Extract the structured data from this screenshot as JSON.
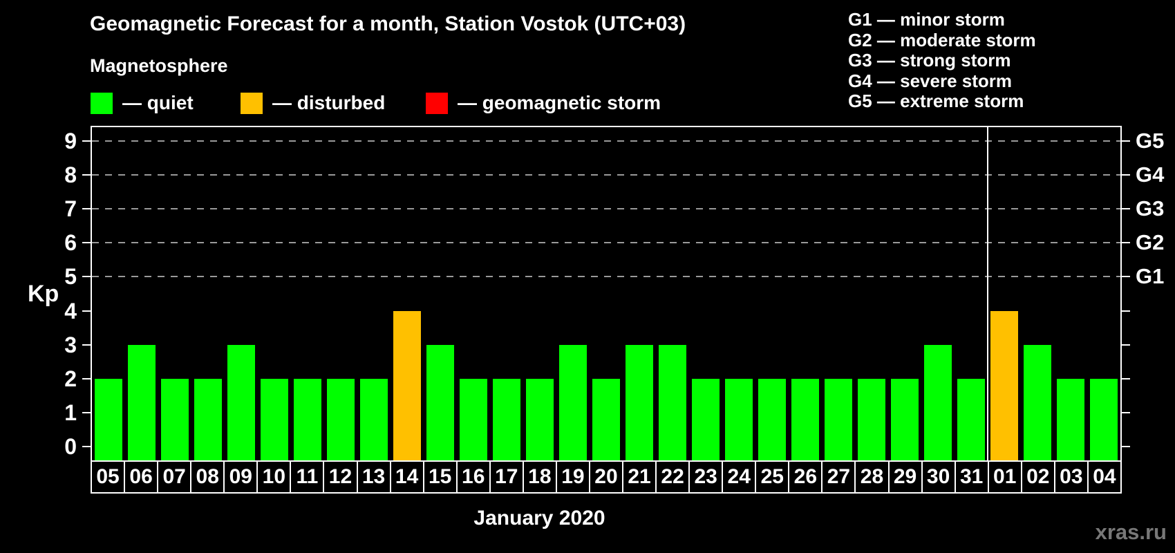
{
  "header": {
    "title": "Geomagnetic Forecast for a month, Station Vostok (UTC+03)",
    "subtitle": "Magnetosphere"
  },
  "legend": {
    "items": [
      {
        "name": "quiet",
        "label": "— quiet",
        "color": "#00ff00",
        "x": 0
      },
      {
        "name": "disturbed",
        "label": "— disturbed",
        "color": "#ffc000",
        "x": 217
      },
      {
        "name": "storm",
        "label": "— geomagnetic storm",
        "color": "#ff0000",
        "x": 485
      }
    ]
  },
  "g_scale_legend": {
    "items": [
      "G1 — minor storm",
      "G2 — moderate storm",
      "G3 — strong storm",
      "G4 — severe storm",
      "G5 — extreme storm"
    ]
  },
  "watermark": "xras.ru",
  "chart_data": {
    "type": "bar",
    "title": "Geomagnetic Forecast for a month, Station Vostok (UTC+03)",
    "xlabel": "January 2020",
    "ylabel": "Kp",
    "ylim": [
      -0.4,
      9.4
    ],
    "yticks": [
      0,
      1,
      2,
      3,
      4,
      5,
      6,
      7,
      8,
      9
    ],
    "gridlines_at": [
      5,
      6,
      7,
      8,
      9
    ],
    "grid": "dashed",
    "legend_position": "top",
    "right_axis": [
      {
        "value": 5,
        "label": "G1"
      },
      {
        "value": 6,
        "label": "G2"
      },
      {
        "value": 7,
        "label": "G3"
      },
      {
        "value": 8,
        "label": "G4"
      },
      {
        "value": 9,
        "label": "G5"
      }
    ],
    "categories": [
      "05",
      "06",
      "07",
      "08",
      "09",
      "10",
      "11",
      "12",
      "13",
      "14",
      "15",
      "16",
      "17",
      "18",
      "19",
      "20",
      "21",
      "22",
      "23",
      "24",
      "25",
      "26",
      "27",
      "28",
      "29",
      "30",
      "31",
      "01",
      "02",
      "03",
      "04"
    ],
    "values": [
      2,
      3,
      2,
      2,
      3,
      2,
      2,
      2,
      2,
      4,
      3,
      2,
      2,
      2,
      3,
      2,
      3,
      3,
      2,
      2,
      2,
      2,
      2,
      2,
      2,
      3,
      2,
      4,
      3,
      2,
      2
    ],
    "statuses": [
      "quiet",
      "quiet",
      "quiet",
      "quiet",
      "quiet",
      "quiet",
      "quiet",
      "quiet",
      "quiet",
      "disturbed",
      "quiet",
      "quiet",
      "quiet",
      "quiet",
      "quiet",
      "quiet",
      "quiet",
      "quiet",
      "quiet",
      "quiet",
      "quiet",
      "quiet",
      "quiet",
      "quiet",
      "quiet",
      "quiet",
      "quiet",
      "disturbed",
      "quiet",
      "quiet",
      "quiet"
    ],
    "month_separator_after_index": 26,
    "colors": {
      "quiet": "#00ff00",
      "disturbed": "#ffc000",
      "storm": "#ff0000",
      "grid": "#9a9a9a",
      "axis": "#ffffff",
      "background": "#000000",
      "watermark": "#787878"
    }
  }
}
